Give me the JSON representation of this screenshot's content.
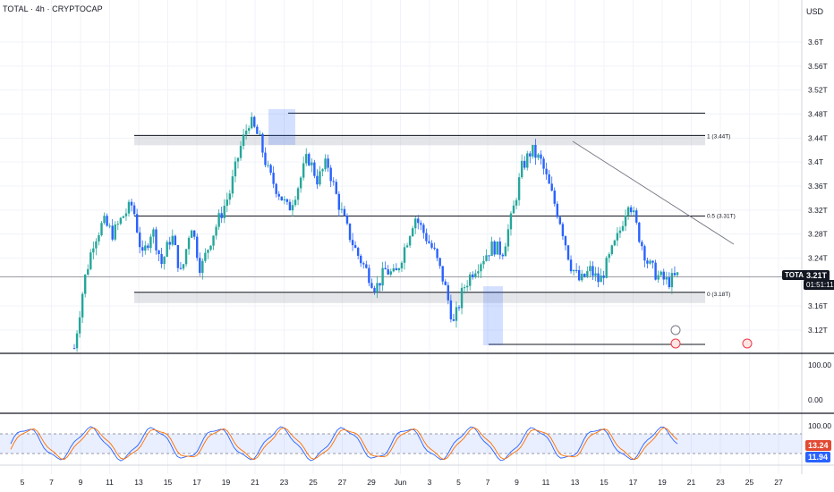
{
  "header": {
    "title": "TOTAL · 4h · CRYPTOCAP"
  },
  "axis": {
    "currency": "USD",
    "price_ticks": [
      "3.6T",
      "3.56T",
      "3.52T",
      "3.48T",
      "3.44T",
      "3.4T",
      "3.36T",
      "3.32T",
      "3.28T",
      "3.24T",
      "3.16T",
      "3.12T"
    ],
    "rsi_ticks": [
      "100.00",
      "0.00"
    ],
    "stoch_ticks": [
      "100.00"
    ],
    "time_ticks": [
      "5",
      "7",
      "9",
      "11",
      "13",
      "15",
      "17",
      "19",
      "21",
      "23",
      "25",
      "27",
      "29",
      "Jun",
      "3",
      "5",
      "7",
      "9",
      "11",
      "13",
      "15",
      "17",
      "19",
      "21",
      "23",
      "25",
      "27"
    ]
  },
  "price_badge": {
    "symbol": "TOTAL",
    "value": "3.21T",
    "countdown": "01:51:11"
  },
  "stoch_badges": {
    "k": "13.24",
    "d": "11.94"
  },
  "fib_labels": {
    "top": "1 (3.44T)",
    "mid": "0.5 (3.31T)",
    "bottom": "0 (3.18T)"
  },
  "colors": {
    "up": "#26a69a",
    "down": "#2962ff",
    "accent": "#2962ff",
    "stoch_k": "#2962ff",
    "stoch_d": "#ff6d00",
    "grid": "#f0f3fa",
    "line": "#131722"
  },
  "chart_data": {
    "type": "candlestick",
    "timeframe": "4h",
    "yrange": [
      3.1,
      3.62
    ],
    "price_axis_unit": "T USD",
    "zones": {
      "resistance": 3.44,
      "midline": 3.31,
      "support": 3.18,
      "top_line": 3.48,
      "bottom_line": 3.1
    },
    "close_path": [
      3.09,
      3.2,
      3.27,
      3.3,
      3.28,
      3.31,
      3.33,
      3.24,
      3.29,
      3.23,
      3.28,
      3.21,
      3.3,
      3.22,
      3.27,
      3.31,
      3.35,
      3.42,
      3.47,
      3.44,
      3.38,
      3.35,
      3.32,
      3.36,
      3.41,
      3.37,
      3.4,
      3.34,
      3.29,
      3.25,
      3.22,
      3.19,
      3.22,
      3.21,
      3.26,
      3.31,
      3.28,
      3.25,
      3.2,
      3.13,
      3.19,
      3.22,
      3.24,
      3.26,
      3.25,
      3.31,
      3.39,
      3.42,
      3.4,
      3.35,
      3.3,
      3.23,
      3.2,
      3.22,
      3.2,
      3.24,
      3.28,
      3.34,
      3.28,
      3.23,
      3.21,
      3.2,
      3.21
    ],
    "stoch_range": [
      0,
      100
    ],
    "stoch_last": {
      "k": 13.24,
      "d": 11.94
    }
  }
}
